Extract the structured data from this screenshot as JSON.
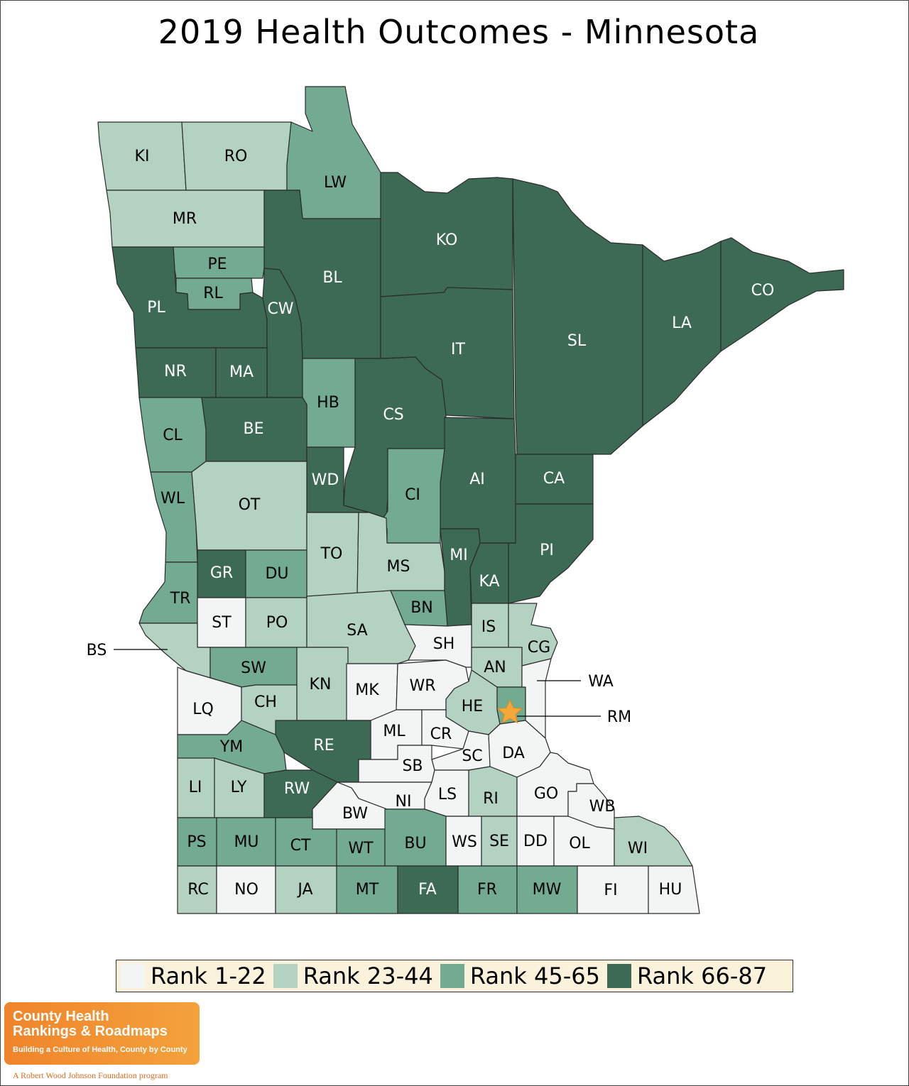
{
  "title": "2019 Health Outcomes - Minnesota",
  "colors": {
    "rank_1_22": "#f2f5f3",
    "rank_23_44": "#b3d2c1",
    "rank_45_65": "#72ab91",
    "rank_66_87": "#3c6a54",
    "star": "#f5a83a"
  },
  "legend": [
    {
      "label": "Rank 1-22",
      "tier": "rank_1_22"
    },
    {
      "label": "Rank 23-44",
      "tier": "rank_23_44"
    },
    {
      "label": "Rank 45-65",
      "tier": "rank_45_65"
    },
    {
      "label": "Rank 66-87",
      "tier": "rank_66_87"
    }
  ],
  "callouts": [
    "BS",
    "WA",
    "RM"
  ],
  "highlight": "RM",
  "counties": {
    "KI": "rank_23_44",
    "RO": "rank_23_44",
    "LW": "rank_45_65",
    "MR": "rank_23_44",
    "PE": "rank_45_65",
    "RL": "rank_45_65",
    "PL": "rank_66_87",
    "BL": "rank_66_87",
    "CW": "rank_66_87",
    "KO": "rank_66_87",
    "CO": "rank_66_87",
    "LA": "rank_66_87",
    "SL": "rank_66_87",
    "IT": "rank_66_87",
    "NR": "rank_66_87",
    "MA": "rank_66_87",
    "HB": "rank_45_65",
    "CS": "rank_66_87",
    "CL": "rank_45_65",
    "BE": "rank_66_87",
    "WD": "rank_66_87",
    "AI": "rank_66_87",
    "CA": "rank_66_87",
    "CI": "rank_45_65",
    "WL": "rank_45_65",
    "OT": "rank_23_44",
    "TO": "rank_23_44",
    "MS": "rank_23_44",
    "PI": "rank_66_87",
    "MI": "rank_66_87",
    "KA": "rank_66_87",
    "GR": "rank_66_87",
    "DU": "rank_45_65",
    "TR": "rank_45_65",
    "ST": "rank_1_22",
    "PO": "rank_23_44",
    "SA": "rank_23_44",
    "BN": "rank_45_65",
    "IS": "rank_23_44",
    "CG": "rank_23_44",
    "SH": "rank_1_22",
    "AN": "rank_23_44",
    "BS": "rank_23_44",
    "SW": "rank_45_65",
    "KN": "rank_23_44",
    "MK": "rank_1_22",
    "WR": "rank_1_22",
    "HE": "rank_23_44",
    "RM": "rank_45_65",
    "WA": "rank_1_22",
    "LQ": "rank_1_22",
    "CH": "rank_23_44",
    "ML": "rank_1_22",
    "CR": "rank_1_22",
    "RE": "rank_66_87",
    "YM": "rank_45_65",
    "SC": "rank_1_22",
    "DA": "rank_1_22",
    "SB": "rank_1_22",
    "LI": "rank_23_44",
    "LY": "rank_23_44",
    "RW": "rank_66_87",
    "NI": "rank_1_22",
    "LS": "rank_1_22",
    "RI": "rank_23_44",
    "GO": "rank_1_22",
    "WB": "rank_1_22",
    "BW": "rank_1_22",
    "PS": "rank_45_65",
    "MU": "rank_45_65",
    "CT": "rank_45_65",
    "WT": "rank_45_65",
    "BU": "rank_45_65",
    "WS": "rank_1_22",
    "SE": "rank_23_44",
    "DD": "rank_1_22",
    "OL": "rank_1_22",
    "WI": "rank_23_44",
    "RC": "rank_23_44",
    "NO": "rank_1_22",
    "JA": "rank_23_44",
    "MT": "rank_45_65",
    "FA": "rank_66_87",
    "FR": "rank_45_65",
    "MW": "rank_45_65",
    "FI": "rank_1_22",
    "HU": "rank_1_22"
  },
  "logo": {
    "line1": "County Health",
    "line2": "Rankings & Roadmaps",
    "tagline": "Building a Culture of Health, County by County",
    "footer": "A Robert Wood Johnson Foundation program"
  }
}
